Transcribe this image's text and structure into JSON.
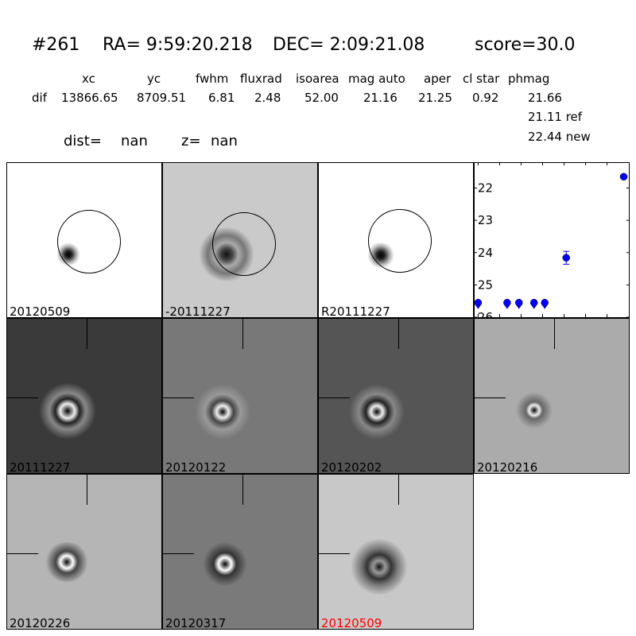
{
  "header": {
    "id": "#261",
    "ra": "RA= 9:59:20.218",
    "dec": "DEC= 2:09:21.08",
    "score": "score=30.0"
  },
  "table": {
    "columns": [
      "xc",
      "yc",
      "fwhm",
      "fluxrad",
      "isoarea",
      "mag auto",
      "aper",
      "cl star",
      "phmag"
    ],
    "row_label": "dif",
    "values": [
      "13866.65",
      "8709.51",
      "6.81",
      "2.48",
      "52.00",
      "21.16",
      "21.25",
      "0.92",
      "21.66"
    ],
    "ref": "21.11 ref",
    "new": "22.44 new"
  },
  "dist": {
    "label": "dist=",
    "value": "nan"
  },
  "z": {
    "label": "z=",
    "value": "nan"
  },
  "stamps": [
    {
      "label": "20120509",
      "color": "#000000"
    },
    {
      "label": "-20111227",
      "color": "#000000"
    },
    {
      "label": "R20111227",
      "color": "#000000"
    },
    {
      "label": "20111227",
      "color": "#000000"
    },
    {
      "label": "20120122",
      "color": "#000000"
    },
    {
      "label": "20120202",
      "color": "#000000"
    },
    {
      "label": "20120216",
      "color": "#000000"
    },
    {
      "label": "20120226",
      "color": "#000000"
    },
    {
      "label": "20120317",
      "color": "#000000"
    },
    {
      "label": "20120509",
      "color": "#ff0000"
    }
  ],
  "chart_data": {
    "type": "scatter",
    "xlim": [
      -4,
      141
    ],
    "ylim": [
      26,
      21.2
    ],
    "y_inverted": true,
    "xticks": [
      "0",
      "20",
      "40",
      "60",
      "80",
      "100",
      "120"
    ],
    "yticks": [
      "22",
      "23",
      "24",
      "25",
      "26"
    ],
    "color": "#0000ff",
    "points": [
      {
        "x": 0,
        "y": 25.55,
        "upper_limit": true
      },
      {
        "x": 27,
        "y": 25.55,
        "upper_limit": true
      },
      {
        "x": 38,
        "y": 25.55,
        "upper_limit": true
      },
      {
        "x": 52,
        "y": 25.55,
        "upper_limit": true
      },
      {
        "x": 62,
        "y": 25.55,
        "upper_limit": true
      },
      {
        "x": 82,
        "y": 24.16,
        "err": 0.2
      },
      {
        "x": 135.5,
        "y": 21.65
      }
    ]
  }
}
